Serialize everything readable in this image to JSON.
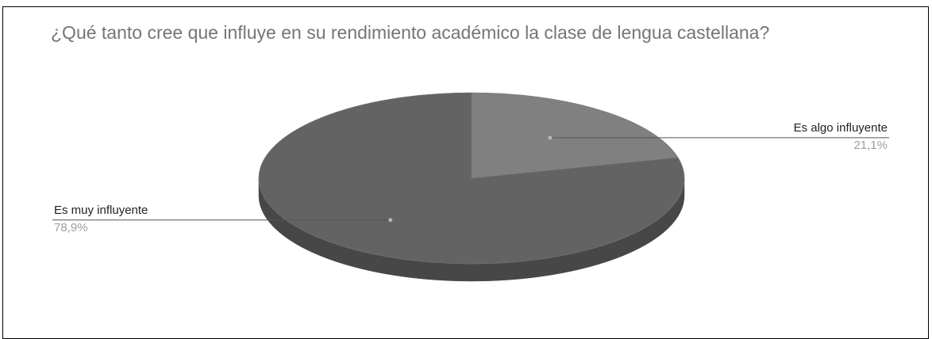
{
  "chart_data": {
    "type": "pie",
    "style": "3d",
    "title": "¿Qué tanto cree que influye en su rendimiento académico la clase de lengua castellana?",
    "slices": [
      {
        "label": "Es algo influyente",
        "value": 21.1,
        "value_label": "21,1%",
        "color": "#808080",
        "side_color": "#5e5e5e"
      },
      {
        "label": "Es muy influyente",
        "value": 78.9,
        "value_label": "78,9%",
        "color": "#636363",
        "side_color": "#474747"
      }
    ],
    "start_angle": "12 o'clock",
    "direction": "clockwise",
    "legend": "none (callout labels)"
  }
}
